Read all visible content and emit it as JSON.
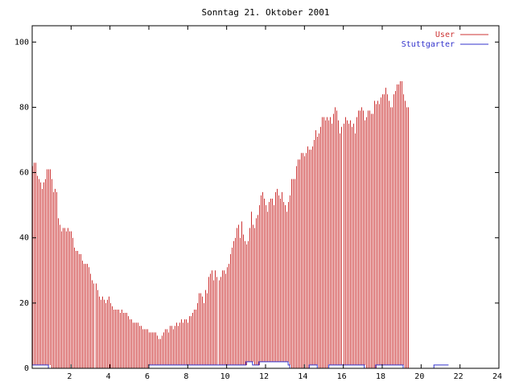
{
  "chart_data": {
    "type": "bar",
    "title": "Sonntag 21. Oktober 2001",
    "xlabel": "",
    "ylabel": "",
    "xlim": [
      0,
      24
    ],
    "ylim": [
      0,
      105
    ],
    "x_ticks": [
      2,
      4,
      6,
      8,
      10,
      12,
      14,
      16,
      18,
      20,
      22,
      24
    ],
    "y_ticks": [
      0,
      20,
      40,
      60,
      80,
      100
    ],
    "grid": false,
    "legend_position": "top-right",
    "x_step": 0.0833,
    "series": [
      {
        "name": "User",
        "type": "bar",
        "color": "#cc3333",
        "values": [
          62,
          63,
          63,
          59,
          58,
          57,
          55,
          57,
          58,
          61,
          61,
          61,
          58,
          54,
          55,
          54,
          46,
          44,
          42,
          43,
          43,
          42,
          43,
          42,
          42,
          40,
          37,
          36,
          36,
          35,
          35,
          33,
          32,
          32,
          32,
          31,
          29,
          27,
          26,
          26,
          24,
          22,
          21,
          22,
          21,
          20,
          21,
          22,
          20,
          19,
          18,
          18,
          18,
          18,
          17,
          18,
          17,
          17,
          17,
          16,
          15,
          15,
          14,
          14,
          14,
          14,
          13,
          13,
          12,
          12,
          12,
          12,
          11,
          11,
          11,
          11,
          11,
          10,
          9,
          9,
          10,
          11,
          12,
          12,
          11,
          13,
          13,
          12,
          13,
          14,
          13,
          14,
          15,
          14,
          15,
          15,
          14,
          16,
          16,
          17,
          18,
          18,
          20,
          23,
          23,
          22,
          20,
          24,
          23,
          28,
          29,
          30,
          27,
          30,
          28,
          27,
          28,
          30,
          30,
          29,
          31,
          32,
          35,
          37,
          39,
          40,
          43,
          44,
          40,
          45,
          41,
          39,
          38,
          39,
          43,
          48,
          44,
          43,
          46,
          47,
          50,
          53,
          54,
          52,
          50,
          48,
          51,
          52,
          52,
          50,
          54,
          55,
          53,
          52,
          54,
          51,
          50,
          48,
          51,
          53,
          58,
          58,
          58,
          62,
          64,
          64,
          66,
          66,
          65,
          66,
          68,
          67,
          67,
          68,
          70,
          73,
          71,
          72,
          74,
          77,
          77,
          76,
          77,
          76,
          77,
          75,
          78,
          80,
          79,
          76,
          72,
          74,
          75,
          77,
          76,
          75,
          76,
          74,
          75,
          72,
          77,
          79,
          79,
          80,
          79,
          76,
          77,
          79,
          79,
          78,
          78,
          82,
          81,
          82,
          81,
          83,
          84,
          84,
          86,
          84,
          82,
          80,
          80,
          84,
          85,
          87,
          87,
          88,
          88,
          84,
          82,
          80,
          80
        ],
        "baseline_values": [
          1,
          1,
          1,
          1,
          1,
          1,
          1,
          1,
          1,
          1,
          1,
          1,
          0,
          0,
          0,
          0,
          0,
          0,
          0,
          0,
          0,
          0,
          0,
          0,
          0,
          0,
          0,
          0,
          0,
          0,
          0,
          0,
          0,
          0,
          0,
          0,
          0,
          0,
          0,
          0,
          0,
          0,
          0,
          0,
          0,
          0,
          0,
          0,
          0,
          0,
          0,
          0,
          0,
          0,
          0,
          0,
          0,
          0,
          0,
          0,
          0,
          0,
          0,
          0,
          0,
          0,
          0,
          0,
          0,
          0,
          0,
          0,
          1,
          1,
          1,
          1,
          1,
          1,
          1,
          1,
          1,
          1,
          1,
          1,
          1,
          1,
          1,
          1,
          1,
          1,
          1,
          1,
          1,
          1,
          1,
          1,
          1,
          1,
          1,
          1,
          1,
          1,
          1,
          1,
          1,
          1,
          1,
          1,
          1,
          1,
          1,
          1,
          1,
          1,
          1,
          1,
          1,
          1,
          1,
          1,
          1,
          1,
          1,
          1,
          1,
          1,
          1,
          1,
          1,
          1,
          1,
          1,
          1,
          2,
          2,
          2,
          2,
          1,
          1,
          1,
          1,
          2,
          2,
          2,
          2,
          2,
          2,
          2,
          2,
          2,
          2,
          2,
          2,
          2,
          2,
          2,
          2,
          2,
          2,
          1,
          0,
          0,
          0,
          0,
          0,
          0,
          0,
          0,
          0,
          0,
          0,
          0,
          1,
          1,
          1,
          1,
          1,
          0,
          0,
          0,
          0,
          0,
          0,
          0,
          1,
          1,
          1,
          1,
          1,
          1,
          1,
          1,
          1,
          1,
          1,
          1,
          1,
          1,
          1,
          1,
          1,
          1,
          1,
          1,
          1,
          1,
          0,
          0,
          0,
          0,
          0,
          0,
          0,
          1,
          1,
          1,
          1,
          1,
          1,
          1,
          1,
          1,
          1,
          1,
          1,
          1,
          1,
          1,
          1,
          1,
          0,
          0,
          0,
          0,
          0,
          0,
          0,
          0,
          0,
          0,
          0,
          0,
          0,
          0,
          0,
          0,
          0,
          0,
          0,
          1,
          1,
          1,
          1,
          1,
          1,
          1,
          1,
          1
        ]
      },
      {
        "name": "Stuttgarter",
        "type": "line",
        "color": "#3333cc",
        "values": [
          1,
          1,
          1,
          1,
          1,
          1,
          1,
          1,
          1,
          1,
          0,
          0,
          0,
          0,
          0,
          0,
          0,
          0,
          0,
          0,
          0,
          0,
          0,
          0,
          0,
          0,
          0,
          0,
          0,
          0,
          0,
          0,
          0,
          0,
          0,
          0,
          0,
          0,
          0,
          0,
          0,
          0,
          0,
          0,
          0,
          0,
          0,
          0,
          0,
          0,
          0,
          0,
          0,
          0,
          0,
          0,
          0,
          0,
          0,
          0,
          0,
          0,
          0,
          0,
          0,
          0,
          0,
          0,
          0,
          0,
          0,
          0,
          1,
          1,
          1,
          1,
          1,
          1,
          1,
          1,
          1,
          1,
          1,
          1,
          1,
          1,
          1,
          1,
          1,
          1,
          1,
          1,
          1,
          1,
          1,
          1,
          1,
          1,
          1,
          1,
          1,
          1,
          1,
          1,
          1,
          1,
          1,
          1,
          1,
          1,
          1,
          1,
          1,
          1,
          1,
          1,
          1,
          1,
          1,
          1,
          1,
          1,
          1,
          1,
          1,
          1,
          1,
          1,
          1,
          1,
          1,
          1,
          2,
          2,
          2,
          2,
          1,
          1,
          1,
          1,
          2,
          2,
          2,
          2,
          2,
          2,
          2,
          2,
          2,
          2,
          2,
          2,
          2,
          2,
          2,
          2,
          2,
          2,
          1,
          0,
          0,
          0,
          0,
          0,
          0,
          0,
          0,
          0,
          0,
          0,
          0,
          1,
          1,
          1,
          1,
          1,
          0,
          0,
          0,
          0,
          0,
          0,
          0,
          1,
          1,
          1,
          1,
          1,
          1,
          1,
          1,
          1,
          1,
          1,
          1,
          1,
          1,
          1,
          1,
          1,
          1,
          1,
          1,
          1,
          1,
          0,
          0,
          0,
          0,
          0,
          0,
          0,
          1,
          1,
          1,
          1,
          1,
          1,
          1,
          1,
          1,
          1,
          1,
          1,
          1,
          1,
          1,
          1,
          1,
          0,
          0,
          0,
          0,
          0,
          0,
          0,
          0,
          0,
          0,
          0,
          0,
          0,
          0,
          0,
          0,
          0,
          0,
          0,
          1,
          1,
          1,
          1,
          1,
          1,
          1,
          1,
          1
        ]
      }
    ]
  }
}
